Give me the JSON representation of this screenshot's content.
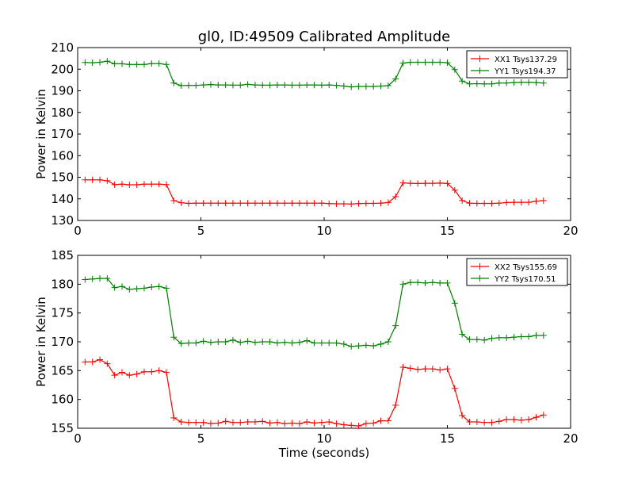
{
  "chart_data": [
    {
      "type": "line",
      "title": "gl0, ID:49509 Calibrated Amplitude",
      "xlabel": "",
      "ylabel": "Power in Kelvin",
      "xlim": [
        0,
        20
      ],
      "ylim": [
        130,
        210
      ],
      "xticks": [
        "0",
        "5",
        "10",
        "15",
        "20"
      ],
      "yticks": [
        "130",
        "140",
        "150",
        "160",
        "170",
        "180",
        "190",
        "200",
        "210"
      ],
      "legend_position": "top-right",
      "grid": false,
      "marker": "+",
      "x": [
        0.3,
        0.6,
        0.9,
        1.2,
        1.5,
        1.8,
        2.1,
        2.4,
        2.7,
        3.0,
        3.3,
        3.6,
        3.9,
        4.2,
        4.5,
        4.8,
        5.1,
        5.4,
        5.7,
        6.0,
        6.3,
        6.6,
        6.9,
        7.2,
        7.5,
        7.8,
        8.1,
        8.4,
        8.7,
        9.0,
        9.3,
        9.6,
        9.9,
        10.2,
        10.5,
        10.8,
        11.1,
        11.4,
        11.7,
        12.0,
        12.3,
        12.6,
        12.9,
        13.2,
        13.5,
        13.8,
        14.1,
        14.4,
        14.7,
        15.0,
        15.3,
        15.6,
        15.9,
        16.2,
        16.5,
        16.8,
        17.1,
        17.4,
        17.7,
        18.0,
        18.3,
        18.6,
        18.9
      ],
      "series": [
        {
          "name": "XX1 Tsys137.29",
          "color": "#ff0000",
          "values": [
            148.8,
            148.8,
            148.8,
            148.4,
            146.6,
            146.8,
            146.5,
            146.5,
            146.8,
            146.8,
            146.8,
            146.6,
            139.2,
            138.2,
            137.9,
            138.0,
            138.0,
            138.0,
            138.0,
            138.0,
            138.0,
            138.0,
            138.0,
            138.0,
            138.0,
            138.0,
            138.0,
            138.0,
            138.0,
            138.0,
            138.0,
            138.0,
            138.0,
            137.8,
            137.7,
            137.7,
            137.6,
            137.8,
            137.9,
            137.9,
            138.0,
            138.3,
            141.0,
            147.4,
            147.2,
            147.1,
            147.2,
            147.2,
            147.3,
            147.1,
            144.0,
            139.2,
            138.0,
            137.9,
            137.9,
            137.9,
            138.0,
            138.3,
            138.4,
            138.4,
            138.4,
            138.9,
            139.2
          ]
        },
        {
          "name": "YY1 Tsys194.37",
          "color": "#008000",
          "values": [
            203.1,
            203.0,
            203.2,
            203.7,
            202.5,
            202.5,
            202.2,
            202.2,
            202.2,
            202.6,
            202.6,
            202.2,
            193.6,
            192.4,
            192.5,
            192.5,
            192.7,
            192.9,
            192.7,
            192.7,
            192.6,
            192.6,
            193.0,
            192.7,
            192.6,
            192.6,
            192.7,
            192.7,
            192.6,
            192.6,
            192.7,
            192.7,
            192.6,
            192.7,
            192.5,
            192.2,
            191.8,
            192.0,
            192.0,
            192.0,
            192.2,
            192.4,
            195.5,
            202.8,
            203.2,
            203.2,
            203.2,
            203.2,
            203.2,
            203.0,
            199.8,
            194.5,
            193.2,
            193.3,
            193.2,
            193.2,
            193.6,
            193.6,
            193.8,
            193.9,
            193.9,
            193.8,
            193.6
          ]
        }
      ]
    },
    {
      "type": "line",
      "title": "",
      "xlabel": "Time (seconds)",
      "ylabel": "Power in Kelvin",
      "xlim": [
        0,
        20
      ],
      "ylim": [
        155,
        185
      ],
      "xticks": [
        "0",
        "5",
        "10",
        "15",
        "20"
      ],
      "yticks": [
        "155",
        "160",
        "165",
        "170",
        "175",
        "180",
        "185"
      ],
      "legend_position": "top-right",
      "grid": false,
      "marker": "+",
      "x": [
        0.3,
        0.6,
        0.9,
        1.2,
        1.5,
        1.8,
        2.1,
        2.4,
        2.7,
        3.0,
        3.3,
        3.6,
        3.9,
        4.2,
        4.5,
        4.8,
        5.1,
        5.4,
        5.7,
        6.0,
        6.3,
        6.6,
        6.9,
        7.2,
        7.5,
        7.8,
        8.1,
        8.4,
        8.7,
        9.0,
        9.3,
        9.6,
        9.9,
        10.2,
        10.5,
        10.8,
        11.1,
        11.4,
        11.7,
        12.0,
        12.3,
        12.6,
        12.9,
        13.2,
        13.5,
        13.8,
        14.1,
        14.4,
        14.7,
        15.0,
        15.3,
        15.6,
        15.9,
        16.2,
        16.5,
        16.8,
        17.1,
        17.4,
        17.7,
        18.0,
        18.3,
        18.6,
        18.9
      ],
      "series": [
        {
          "name": "XX2 Tsys155.69",
          "color": "#ff0000",
          "values": [
            166.5,
            166.5,
            166.9,
            166.2,
            164.2,
            164.7,
            164.2,
            164.4,
            164.8,
            164.8,
            165.0,
            164.7,
            156.8,
            156.1,
            156.0,
            156.0,
            156.0,
            155.8,
            155.9,
            156.2,
            156.0,
            156.0,
            156.1,
            156.1,
            156.2,
            155.9,
            156.0,
            155.8,
            155.9,
            155.8,
            156.1,
            155.9,
            156.0,
            156.1,
            155.8,
            155.6,
            155.5,
            155.4,
            155.8,
            155.9,
            156.3,
            156.3,
            159.0,
            165.6,
            165.4,
            165.2,
            165.3,
            165.3,
            165.1,
            165.3,
            161.9,
            157.2,
            156.1,
            156.1,
            156.0,
            156.0,
            156.2,
            156.5,
            156.5,
            156.4,
            156.5,
            156.9,
            157.3
          ]
        },
        {
          "name": "YY2 Tsys170.51",
          "color": "#008000",
          "values": [
            180.8,
            180.9,
            181.0,
            181.0,
            179.4,
            179.6,
            179.1,
            179.2,
            179.3,
            179.5,
            179.6,
            179.3,
            170.8,
            169.7,
            169.8,
            169.8,
            170.1,
            169.9,
            170.0,
            170.0,
            170.3,
            169.9,
            170.1,
            169.9,
            170.0,
            170.0,
            169.8,
            169.9,
            169.8,
            169.9,
            170.2,
            169.8,
            169.8,
            169.8,
            169.8,
            169.6,
            169.2,
            169.3,
            169.4,
            169.3,
            169.6,
            170.0,
            172.8,
            180.0,
            180.3,
            180.3,
            180.2,
            180.3,
            180.2,
            180.2,
            176.7,
            171.3,
            170.4,
            170.4,
            170.3,
            170.6,
            170.7,
            170.7,
            170.8,
            170.9,
            170.9,
            171.1,
            171.1
          ]
        }
      ]
    }
  ]
}
